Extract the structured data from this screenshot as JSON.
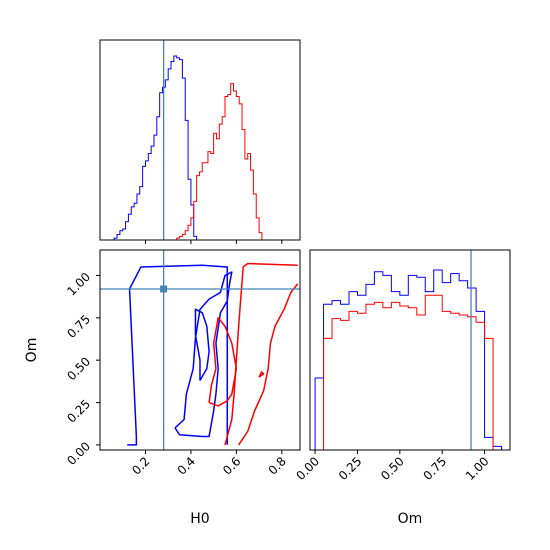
{
  "colors": {
    "series_a": "#0000ff",
    "series_b": "#ff0000",
    "truth": "#4682b4"
  },
  "chart_data": [
    {
      "panel": "H0 marginal",
      "type": "histogram",
      "xlim": [
        0.0,
        0.88
      ],
      "ylim": [
        0,
        1
      ],
      "truth_x": 0.28,
      "bins": [
        0.05,
        0.0625,
        0.075,
        0.0875,
        0.1,
        0.1125,
        0.125,
        0.1375,
        0.15,
        0.1625,
        0.175,
        0.1875,
        0.2,
        0.2125,
        0.225,
        0.2375,
        0.25,
        0.2625,
        0.275,
        0.2875,
        0.3,
        0.3125,
        0.325,
        0.3375,
        0.35,
        0.3625,
        0.375,
        0.3875,
        0.4,
        0.4125,
        0.425,
        0.4375,
        0.45,
        0.4625,
        0.475,
        0.4875,
        0.5,
        0.5125,
        0.525,
        0.5375,
        0.55,
        0.5625,
        0.575,
        0.5875,
        0.6,
        0.6125,
        0.625,
        0.6375,
        0.65,
        0.6625,
        0.675,
        0.6875,
        0.7,
        0.7125,
        0.725,
        0.7375,
        0.75,
        0.7625,
        0.775,
        0.7875,
        0.8,
        0.8125,
        0.825,
        0.8375,
        0.85,
        0.8625,
        0.875
      ],
      "series": [
        {
          "color": "blue",
          "values": [
            0,
            0.01,
            0.03,
            0.05,
            0.06,
            0.1,
            0.14,
            0.18,
            0.2,
            0.25,
            0.29,
            0.4,
            0.43,
            0.47,
            0.51,
            0.57,
            0.67,
            0.8,
            0.83,
            0.87,
            0.93,
            0.97,
            1.0,
            0.99,
            0.98,
            0.88,
            0.65,
            0.33,
            0.19,
            0.02,
            0,
            0,
            0,
            0,
            0,
            0,
            0,
            0,
            0,
            0,
            0,
            0,
            0,
            0,
            0,
            0,
            0,
            0,
            0,
            0,
            0,
            0,
            0,
            0,
            0,
            0,
            0,
            0,
            0,
            0,
            0,
            0,
            0,
            0,
            0,
            0
          ]
        },
        {
          "color": "red",
          "values": [
            0,
            0,
            0,
            0,
            0,
            0,
            0,
            0,
            0,
            0,
            0,
            0,
            0,
            0,
            0,
            0,
            0,
            0,
            0,
            0,
            0,
            0,
            0,
            0.01,
            0.02,
            0.03,
            0.05,
            0.08,
            0.12,
            0.21,
            0.35,
            0.37,
            0.42,
            0.42,
            0.48,
            0.47,
            0.58,
            0.55,
            0.63,
            0.67,
            0.78,
            0.79,
            0.85,
            0.81,
            0.78,
            0.74,
            0.6,
            0.44,
            0.47,
            0.38,
            0.25,
            0.12,
            0.04,
            0,
            0,
            0,
            0,
            0,
            0,
            0,
            0,
            0,
            0,
            0,
            0,
            0
          ]
        }
      ]
    },
    {
      "panel": "Om marginal",
      "type": "histogram",
      "xlim": [
        -0.03,
        1.15
      ],
      "xlabel": "Om",
      "x_ticks": [
        "0.00",
        "0.25",
        "0.50",
        "0.75",
        "1.00"
      ],
      "truth_x": 0.92,
      "bins": [
        0.0,
        0.05,
        0.1,
        0.15,
        0.2,
        0.25,
        0.3,
        0.35,
        0.4,
        0.45,
        0.5,
        0.55,
        0.6,
        0.65,
        0.7,
        0.75,
        0.8,
        0.85,
        0.9,
        0.95,
        1.0,
        1.05,
        1.1,
        1.15
      ],
      "series": [
        {
          "color": "blue",
          "values": [
            0.4,
            0.81,
            0.83,
            0.81,
            0.88,
            0.86,
            0.92,
            0.99,
            0.97,
            0.88,
            0.86,
            0.97,
            0.96,
            0.88,
            1.0,
            0.93,
            0.98,
            0.94,
            0.9,
            0.77,
            0.07,
            0.02,
            0.0
          ]
        },
        {
          "color": "red",
          "values": [
            0.0,
            0.62,
            0.73,
            0.72,
            0.77,
            0.76,
            0.81,
            0.82,
            0.79,
            0.82,
            0.8,
            0.79,
            0.75,
            0.86,
            0.86,
            0.77,
            0.76,
            0.75,
            0.74,
            0.71,
            0.62,
            0.0,
            0.0
          ]
        }
      ]
    },
    {
      "panel": "H0 vs Om contours",
      "type": "contour",
      "xlim": [
        0.0,
        0.88
      ],
      "ylim": [
        -0.03,
        1.15
      ],
      "xlabel": "H0",
      "ylabel": "Om",
      "x_ticks": [
        "0.2",
        "0.4",
        "0.6",
        "0.8"
      ],
      "y_ticks": [
        "0.00",
        "0.25",
        "0.50",
        "0.75",
        "1.00"
      ],
      "truth": [
        0.28,
        0.92
      ],
      "series": [
        {
          "color": "blue",
          "contours": [
            [
              [
                0.12,
                0.0
              ],
              [
                0.16,
                0.0
              ],
              [
                0.16,
                0.05
              ],
              [
                0.13,
                0.92
              ],
              [
                0.18,
                1.05
              ],
              [
                0.45,
                1.06
              ],
              [
                0.56,
                1.05
              ],
              [
                0.56,
                0.0
              ]
            ],
            [
              [
                0.33,
                0.1
              ],
              [
                0.37,
                0.15
              ],
              [
                0.38,
                0.3
              ],
              [
                0.41,
                0.45
              ],
              [
                0.42,
                0.63
              ],
              [
                0.44,
                0.8
              ],
              [
                0.48,
                0.86
              ],
              [
                0.53,
                0.9
              ],
              [
                0.55,
                1.0
              ],
              [
                0.58,
                1.02
              ],
              [
                0.57,
                0.95
              ],
              [
                0.56,
                0.85
              ],
              [
                0.53,
                0.78
              ],
              [
                0.51,
                0.6
              ],
              [
                0.52,
                0.45
              ],
              [
                0.51,
                0.3
              ],
              [
                0.5,
                0.2
              ],
              [
                0.48,
                0.05
              ],
              [
                0.45,
                0.05
              ],
              [
                0.35,
                0.06
              ],
              [
                0.33,
                0.1
              ]
            ],
            [
              [
                0.44,
                0.38
              ],
              [
                0.47,
                0.45
              ],
              [
                0.48,
                0.55
              ],
              [
                0.47,
                0.7
              ],
              [
                0.45,
                0.78
              ],
              [
                0.42,
                0.8
              ],
              [
                0.42,
                0.65
              ],
              [
                0.44,
                0.5
              ],
              [
                0.44,
                0.38
              ]
            ]
          ]
        },
        {
          "color": "red",
          "contours": [
            [
              [
                0.55,
                0.0
              ],
              [
                0.58,
                0.15
              ],
              [
                0.59,
                0.3
              ],
              [
                0.6,
                0.5
              ],
              [
                0.61,
                0.7
              ],
              [
                0.63,
                1.05
              ],
              [
                0.65,
                1.07
              ],
              [
                0.87,
                1.06
              ]
            ],
            [
              [
                0.61,
                0.0
              ],
              [
                0.65,
                0.08
              ],
              [
                0.68,
                0.2
              ],
              [
                0.72,
                0.32
              ],
              [
                0.74,
                0.45
              ],
              [
                0.75,
                0.6
              ],
              [
                0.77,
                0.7
              ],
              [
                0.81,
                0.8
              ],
              [
                0.84,
                0.9
              ],
              [
                0.87,
                0.95
              ]
            ],
            [
              [
                0.48,
                0.25
              ],
              [
                0.52,
                0.23
              ],
              [
                0.56,
                0.26
              ],
              [
                0.58,
                0.3
              ],
              [
                0.6,
                0.45
              ],
              [
                0.58,
                0.6
              ],
              [
                0.55,
                0.7
              ],
              [
                0.52,
                0.75
              ],
              [
                0.5,
                0.6
              ],
              [
                0.51,
                0.45
              ],
              [
                0.49,
                0.35
              ],
              [
                0.48,
                0.25
              ]
            ],
            [
              [
                0.7,
                0.4
              ],
              [
                0.72,
                0.42
              ],
              [
                0.71,
                0.43
              ],
              [
                0.7,
                0.4
              ]
            ]
          ]
        }
      ]
    }
  ]
}
